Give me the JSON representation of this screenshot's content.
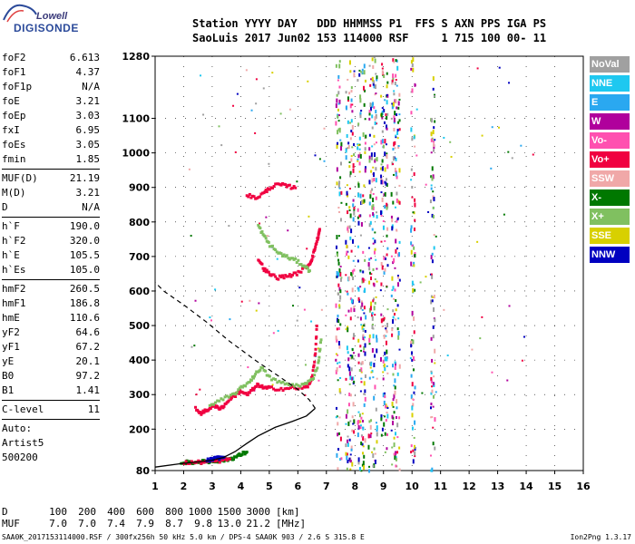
{
  "logo": {
    "line1": "Lowell",
    "line2": "DIGISONDE"
  },
  "header": {
    "labels_line": "Station YYYY DAY   DDD HHMMSS P1  FFS S AXN PPS IGA PS",
    "values_line": "SaoLuis 2017 Jun02 153 114000 RSF     1 715 100 00- 11"
  },
  "parameters": [
    {
      "group": [
        {
          "name": "foF2",
          "value": "6.613"
        },
        {
          "name": "foF1",
          "value": "4.37"
        },
        {
          "name": "foF1p",
          "value": "N/A"
        },
        {
          "name": "foE",
          "value": "3.21"
        },
        {
          "name": "foEp",
          "value": "3.03"
        },
        {
          "name": "fxI",
          "value": "6.95"
        },
        {
          "name": "foEs",
          "value": "3.05"
        },
        {
          "name": "fmin",
          "value": "1.85"
        }
      ]
    },
    {
      "group": [
        {
          "name": "MUF(D)",
          "value": "21.19"
        },
        {
          "name": "M(D)",
          "value": "3.21"
        },
        {
          "name": "D",
          "value": "N/A"
        }
      ]
    },
    {
      "group": [
        {
          "name": "h`F",
          "value": "190.0"
        },
        {
          "name": "h`F2",
          "value": "320.0"
        },
        {
          "name": "h`E",
          "value": "105.5"
        },
        {
          "name": "h`Es",
          "value": "105.0"
        }
      ]
    },
    {
      "group": [
        {
          "name": "hmF2",
          "value": "260.5"
        },
        {
          "name": "hmF1",
          "value": "186.8"
        },
        {
          "name": "hmE",
          "value": "110.6"
        },
        {
          "name": "yF2",
          "value": "64.6"
        },
        {
          "name": "yF1",
          "value": "67.2"
        },
        {
          "name": "yE",
          "value": "20.1"
        },
        {
          "name": "B0",
          "value": "97.2"
        },
        {
          "name": "B1",
          "value": "1.41"
        }
      ]
    },
    {
      "group": [
        {
          "name": "C-level",
          "value": "11"
        }
      ]
    },
    {
      "group": [
        {
          "name": "Auto:",
          "value": ""
        },
        {
          "name": "Artist5",
          "value": ""
        },
        {
          "name": "500200",
          "value": ""
        }
      ]
    }
  ],
  "legend": [
    {
      "label": "NoVal",
      "color": "#a0a0a0"
    },
    {
      "label": "NNE",
      "color": "#1ec8f0"
    },
    {
      "label": "E",
      "color": "#2aa8f0"
    },
    {
      "label": "W",
      "color": "#b0009c"
    },
    {
      "label": "Vo-",
      "color": "#ff50b0"
    },
    {
      "label": "Vo+",
      "color": "#f00040"
    },
    {
      "label": "SSW",
      "color": "#f0a8a8"
    },
    {
      "label": "X-",
      "color": "#007800"
    },
    {
      "label": "X+",
      "color": "#80c060"
    },
    {
      "label": "SSE",
      "color": "#d8d000"
    },
    {
      "label": "NNW",
      "color": "#0000c0"
    }
  ],
  "chart_data": {
    "type": "scatter",
    "xlim": [
      1,
      16
    ],
    "ylim": [
      80,
      1280
    ],
    "x_ticks": [
      1,
      2,
      3,
      4,
      5,
      6,
      7,
      8,
      9,
      10,
      11,
      12,
      13,
      14,
      15,
      16
    ],
    "y_ticks": [
      80,
      200,
      300,
      400,
      500,
      600,
      700,
      800,
      900,
      1000,
      1100,
      1280
    ],
    "grid": true,
    "traces": [
      {
        "name": "Vo+",
        "color": "#f00040",
        "points": [
          [
            2.4,
            260
          ],
          [
            2.6,
            248
          ],
          [
            2.8,
            255
          ],
          [
            3.0,
            270
          ],
          [
            3.2,
            262
          ],
          [
            3.4,
            268
          ],
          [
            3.6,
            290
          ],
          [
            3.8,
            300
          ],
          [
            4.0,
            312
          ],
          [
            4.2,
            300
          ],
          [
            4.4,
            315
          ],
          [
            4.6,
            330
          ],
          [
            4.8,
            320
          ],
          [
            5.0,
            320
          ],
          [
            5.4,
            318
          ],
          [
            5.8,
            320
          ],
          [
            6.2,
            320
          ],
          [
            6.4,
            330
          ],
          [
            6.5,
            360
          ],
          [
            6.6,
            420
          ],
          [
            6.65,
            500
          ]
        ]
      },
      {
        "name": "X+",
        "color": "#80c060",
        "points": [
          [
            2.9,
            270
          ],
          [
            3.3,
            285
          ],
          [
            3.7,
            300
          ],
          [
            4.0,
            320
          ],
          [
            4.3,
            340
          ],
          [
            4.5,
            360
          ],
          [
            4.7,
            380
          ],
          [
            5.0,
            350
          ],
          [
            5.4,
            335
          ],
          [
            5.8,
            328
          ],
          [
            6.2,
            330
          ],
          [
            6.5,
            345
          ],
          [
            6.7,
            390
          ],
          [
            6.8,
            460
          ]
        ]
      },
      {
        "name": "Vo+",
        "color": "#f00040",
        "points": [
          [
            4.6,
            695
          ],
          [
            4.8,
            665
          ],
          [
            5.0,
            650
          ],
          [
            5.3,
            640
          ],
          [
            5.6,
            645
          ],
          [
            5.9,
            650
          ],
          [
            6.2,
            665
          ],
          [
            6.4,
            680
          ],
          [
            6.5,
            700
          ],
          [
            6.6,
            730
          ],
          [
            6.7,
            760
          ],
          [
            6.75,
            780
          ]
        ]
      },
      {
        "name": "X+",
        "color": "#80c060",
        "points": [
          [
            4.6,
            790
          ],
          [
            4.8,
            760
          ],
          [
            5.0,
            735
          ],
          [
            5.3,
            712
          ],
          [
            5.6,
            700
          ],
          [
            5.9,
            690
          ],
          [
            6.2,
            675
          ],
          [
            6.4,
            660
          ]
        ]
      },
      {
        "name": "Vo+",
        "color": "#f00040",
        "points": [
          [
            4.2,
            880
          ],
          [
            4.5,
            870
          ],
          [
            4.8,
            885
          ],
          [
            5.0,
            900
          ],
          [
            5.3,
            910
          ],
          [
            5.6,
            905
          ],
          [
            5.9,
            900
          ]
        ]
      },
      {
        "name": "E-layer",
        "color": "#007800",
        "points": [
          [
            1.9,
            105
          ],
          [
            2.2,
            105
          ],
          [
            2.5,
            106
          ],
          [
            2.8,
            107
          ],
          [
            3.0,
            108
          ],
          [
            3.2,
            110
          ],
          [
            3.4,
            112
          ],
          [
            3.6,
            115
          ],
          [
            3.8,
            120
          ],
          [
            4.0,
            128
          ],
          [
            4.2,
            135
          ]
        ]
      },
      {
        "name": "E-layer",
        "color": "#f00040",
        "points": [
          [
            2.0,
            104
          ],
          [
            2.4,
            105
          ],
          [
            2.7,
            106
          ],
          [
            3.0,
            108
          ],
          [
            3.3,
            110
          ],
          [
            3.6,
            115
          ]
        ]
      },
      {
        "name": "E-layer",
        "color": "#0000c0",
        "points": [
          [
            2.8,
            110
          ],
          [
            3.0,
            114
          ],
          [
            3.2,
            118
          ],
          [
            3.4,
            120
          ]
        ]
      }
    ],
    "profile": {
      "name": "electron density profile",
      "solid": [
        [
          1.0,
          90
        ],
        [
          1.9,
          100
        ],
        [
          2.5,
          105
        ],
        [
          3.0,
          110
        ],
        [
          3.4,
          118
        ],
        [
          3.8,
          135
        ],
        [
          4.2,
          158
        ],
        [
          4.6,
          180
        ],
        [
          5.2,
          205
        ],
        [
          5.8,
          222
        ],
        [
          6.3,
          238
        ],
        [
          6.61,
          260
        ]
      ],
      "dashed": [
        [
          6.61,
          260
        ],
        [
          6.4,
          285
        ],
        [
          6.0,
          315
        ],
        [
          5.3,
          355
        ],
        [
          4.5,
          400
        ],
        [
          3.6,
          455
        ],
        [
          2.8,
          510
        ],
        [
          2.0,
          560
        ],
        [
          1.3,
          600
        ],
        [
          1.0,
          625
        ]
      ]
    },
    "noise_bands": [
      {
        "x_center": 7.4,
        "width": 0.2
      },
      {
        "x_center": 7.8,
        "width": 0.3
      },
      {
        "x_center": 8.2,
        "width": 0.3
      },
      {
        "x_center": 8.6,
        "width": 0.3
      },
      {
        "x_center": 9.0,
        "width": 0.25
      },
      {
        "x_center": 9.4,
        "width": 0.3
      },
      {
        "x_center": 10.0,
        "width": 0.15
      },
      {
        "x_center": 10.7,
        "width": 0.15
      }
    ]
  },
  "footer": {
    "row1_label": "D",
    "row1_values": [
      "100",
      "200",
      "400",
      "600",
      "800",
      "1000",
      "1500",
      "3000"
    ],
    "row1_unit": "[km]",
    "row2_label": "MUF",
    "row2_values": [
      "7.0",
      "7.0",
      "7.4",
      "7.9",
      "8.7",
      "9.8",
      "13.0",
      "21.2"
    ],
    "row2_unit": "[MHz]",
    "file_line": "SAA0K_2017153114000.RSF / 300fx256h 50 kHz 5.0 km / DPS-4 SAA0K 903 / 2.6 S 315.8 E",
    "version": "Ion2Png 1.3.17"
  }
}
